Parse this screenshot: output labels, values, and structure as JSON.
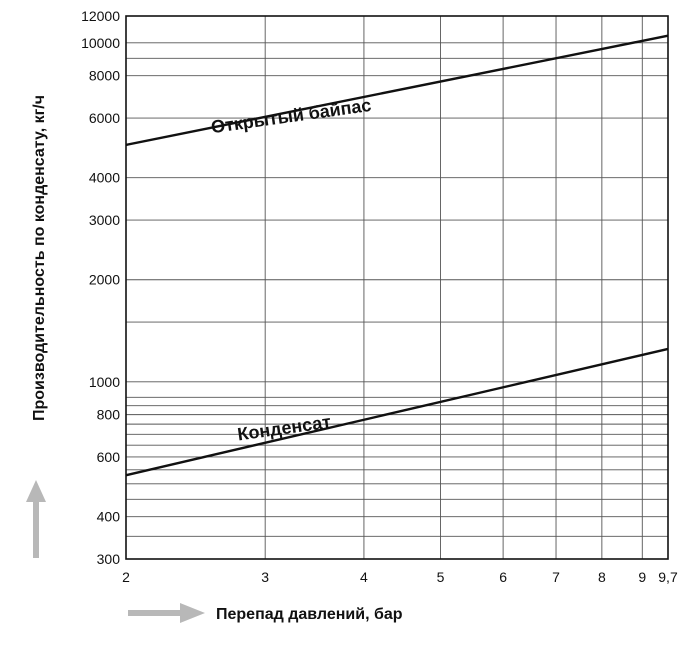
{
  "chart_data": {
    "type": "line",
    "x_scale": "log",
    "y_scale": "log",
    "xlabel": "Перепад давлений, бар",
    "ylabel": "Производительность по конденсату, кг/ч",
    "xlim": [
      2,
      9.7
    ],
    "ylim": [
      300,
      12000
    ],
    "x_ticks": [
      2,
      3,
      4,
      5,
      6,
      7,
      8,
      9,
      9.7
    ],
    "x_tick_labels": [
      "2",
      "3",
      "4",
      "5",
      "6",
      "7",
      "8",
      "9",
      "9,7"
    ],
    "y_ticks": [
      300,
      400,
      600,
      800,
      1000,
      2000,
      3000,
      4000,
      6000,
      8000,
      10000,
      12000
    ],
    "y_tick_labels": [
      "300",
      "400",
      "600",
      "800",
      "1000",
      "2000",
      "3000",
      "4000",
      "6000",
      "8000",
      "10000",
      "12000"
    ],
    "y_grid_extra": [
      350,
      450,
      500,
      550,
      650,
      700,
      750,
      850,
      900,
      1500,
      9000
    ],
    "grid": true,
    "series": [
      {
        "name": "Открытый байпас",
        "x": [
          2,
          9.7
        ],
        "y": [
          5000,
          10500
        ]
      },
      {
        "name": "Конденсат",
        "x": [
          2,
          9.7
        ],
        "y": [
          530,
          1250
        ]
      }
    ]
  }
}
